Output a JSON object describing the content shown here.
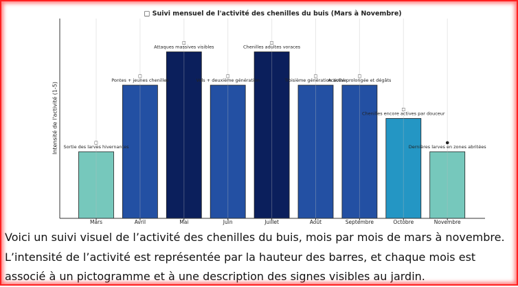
{
  "chart_data": {
    "type": "bar",
    "title": "□ Suivi mensuel de l'activité des chenilles du buis (Mars à Novembre)",
    "y_label": "Intensité de l'activité (1-5)",
    "categories": [
      "Mars",
      "Avril",
      "Mai",
      "Juin",
      "Juillet",
      "Août",
      "Septembre",
      "Octobre",
      "Novembre"
    ],
    "values": [
      2,
      4,
      5,
      4,
      5,
      4,
      4,
      3,
      2
    ],
    "colors": [
      "#76c8bc",
      "#2350a3",
      "#0b1f5c",
      "#2350a3",
      "#0b1f5c",
      "#2350a3",
      "#2350a3",
      "#2496c4",
      "#76c8bc"
    ],
    "icons": [
      "□",
      "□",
      "□",
      "□",
      "□",
      "□",
      "□",
      "□",
      "●"
    ],
    "annotations": [
      "Sortie des larves hivernantes",
      "Pontes + jeunes chenilles",
      "Attaques massives visibles",
      "Vols + deuxième génération",
      "Chenilles adultes voraces",
      "Troisième génération active",
      "Activité prolongée et dégâts",
      "Chenilles encore actives par douceur",
      "Dernières larves en zones abritées"
    ],
    "ylim": [
      0,
      6
    ],
    "grid": "x"
  },
  "caption": "Voici un suivi visuel de l’activité des chenilles du buis, mois par mois de mars à novembre. L’intensité de l’activité est représentée par la hauteur des barres, et chaque mois est associé à un pictogramme et à une description des signes visibles au jardin."
}
